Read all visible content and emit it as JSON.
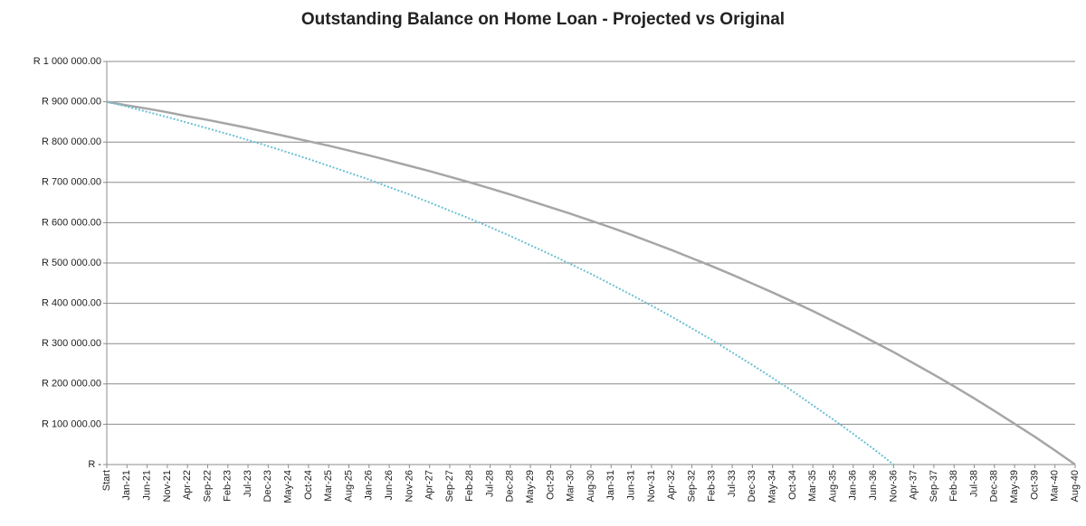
{
  "chart_data": {
    "type": "line",
    "title": "Outstanding Balance on Home Loan - Projected vs Original",
    "categories": [
      "Start",
      "Jan-21",
      "Jun-21",
      "Nov-21",
      "Apr-22",
      "Sep-22",
      "Feb-23",
      "Jul-23",
      "Dec-23",
      "May-24",
      "Oct-24",
      "Mar-25",
      "Aug-25",
      "Jan-26",
      "Jun-26",
      "Nov-26",
      "Apr-27",
      "Sep-27",
      "Feb-28",
      "Jul-28",
      "Dec-28",
      "May-29",
      "Oct-29",
      "Mar-30",
      "Aug-30",
      "Jan-31",
      "Jun-31",
      "Nov-31",
      "Apr-32",
      "Sep-32",
      "Feb-33",
      "Jul-33",
      "Dec-33",
      "May-34",
      "Oct-34",
      "Mar-35",
      "Aug-35",
      "Jan-36",
      "Jun-36",
      "Nov-36",
      "Apr-37",
      "Sep-37",
      "Feb-38",
      "Jul-38",
      "Dec-38",
      "May-39",
      "Oct-39",
      "Mar-40",
      "Aug-40"
    ],
    "series": [
      {
        "color": "#a6a6a6",
        "style": "solid",
        "values": [
          900000,
          891000,
          883000,
          874000,
          864000,
          855000,
          845000,
          835000,
          824000,
          813000,
          802000,
          791000,
          779000,
          767000,
          754000,
          741000,
          728000,
          714000,
          700000,
          685000,
          670000,
          654000,
          638000,
          622000,
          605000,
          588000,
          570000,
          551000,
          532000,
          512000,
          492000,
          471000,
          449000,
          427000,
          404000,
          381000,
          356000,
          331000,
          305000,
          279000,
          251000,
          223000,
          194000,
          164000,
          133000,
          101000,
          69000,
          35000,
          0
        ]
      },
      {
        "color": "#6cc0d3",
        "style": "dotted",
        "values": [
          900000,
          888000,
          875000,
          862000,
          848000,
          834000,
          820000,
          805000,
          790000,
          774000,
          758000,
          741000,
          724000,
          707000,
          688000,
          670000,
          650000,
          630000,
          610000,
          589000,
          567000,
          544000,
          521000,
          497000,
          473000,
          447000,
          421000,
          394000,
          367000,
          338000,
          309000,
          278000,
          247000,
          215000,
          182000,
          147000,
          112000,
          76000,
          39000,
          0,
          null,
          null,
          null,
          null,
          null,
          null,
          null,
          null,
          null
        ]
      }
    ],
    "ylim": [
      0,
      1000000
    ],
    "yticks": [
      {
        "value": 0,
        "label": "R -"
      },
      {
        "value": 100000,
        "label": "R 100 000.00"
      },
      {
        "value": 200000,
        "label": "R 200 000.00"
      },
      {
        "value": 300000,
        "label": "R 300 000.00"
      },
      {
        "value": 400000,
        "label": "R 400 000.00"
      },
      {
        "value": 500000,
        "label": "R 500 000.00"
      },
      {
        "value": 600000,
        "label": "R 600 000.00"
      },
      {
        "value": 700000,
        "label": "R 700 000.00"
      },
      {
        "value": 800000,
        "label": "R 800 000.00"
      },
      {
        "value": 900000,
        "label": "R 900 000.00"
      },
      {
        "value": 1000000,
        "label": "R 1 000 000.00"
      }
    ],
    "grid": true
  }
}
